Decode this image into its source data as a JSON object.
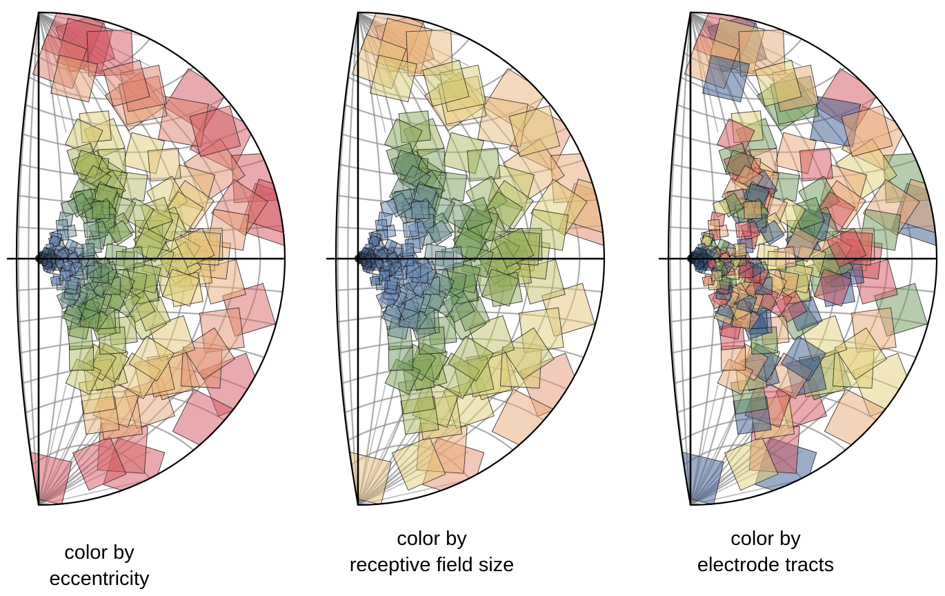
{
  "panels": [
    {
      "caption_line1": "color by",
      "caption_line2": "eccentricity",
      "coloring": "eccentricity",
      "field_count": 300,
      "seed": 11
    },
    {
      "caption_line1": "color by",
      "caption_line2": "receptive field size",
      "coloring": "size",
      "field_count": 300,
      "seed": 11
    },
    {
      "caption_line1": "color by",
      "caption_line2": "electrode tracts",
      "coloring": "tract",
      "field_count": 300,
      "seed": 11
    }
  ],
  "palette": {
    "fovea": "#3b5b8f",
    "blue": "#6f8fb8",
    "green": "#6f9a5a",
    "olive": "#a8b85e",
    "yellow": "#e3cf7a",
    "orange": "#e9a878",
    "red": "#d25560",
    "grid": "#8a8a8a",
    "outline": "#000000"
  }
}
